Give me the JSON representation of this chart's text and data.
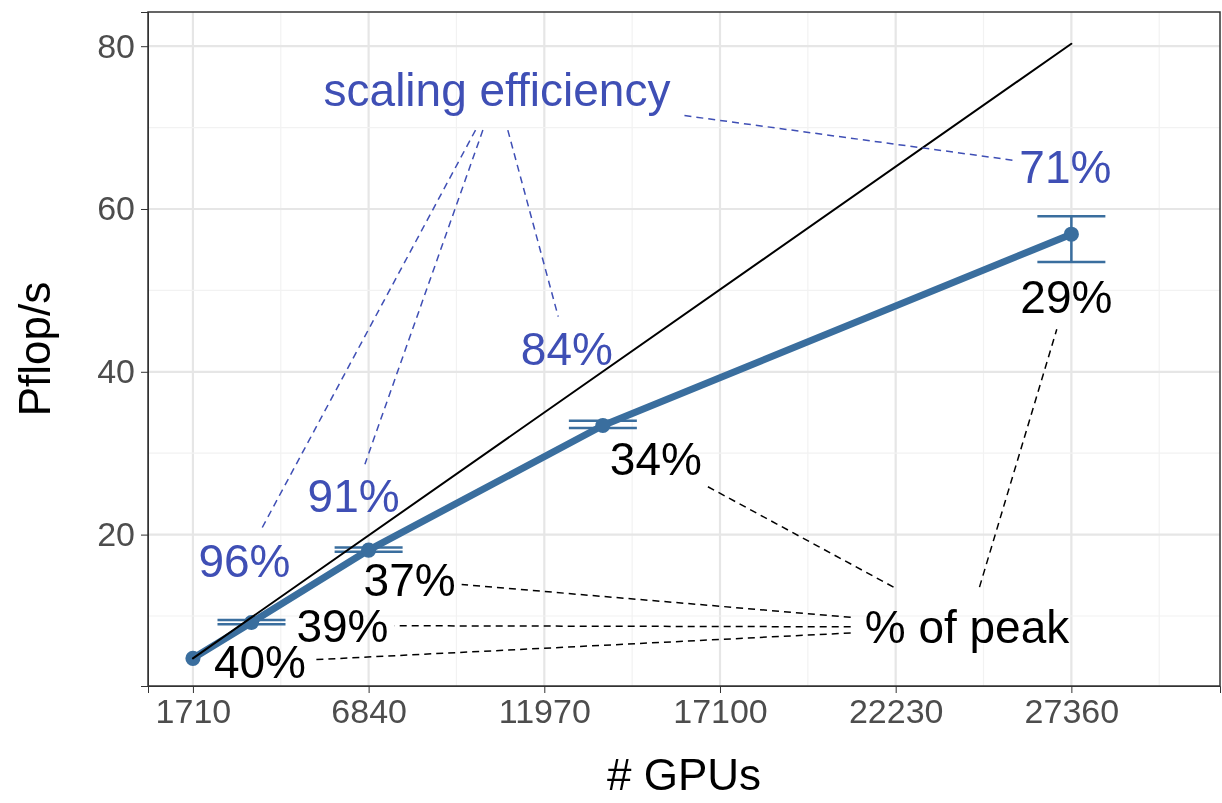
{
  "chart_data": {
    "type": "line",
    "xlabel": "# GPUs",
    "ylabel": "Pflop/s",
    "xlim": [
      398,
      31700
    ],
    "ylim": [
      1.4,
      84.2
    ],
    "xticks": [
      1710,
      6840,
      11970,
      17100,
      22230,
      27360
    ],
    "yticks": [
      20,
      40,
      60,
      80
    ],
    "grid": true,
    "marker": "circle",
    "series": [
      {
        "color": "#3a6e9e",
        "x": [
          1710,
          3420,
          6840,
          13680,
          27360
        ],
        "values": [
          4.8,
          9.2,
          18.1,
          33.4,
          56.9
        ],
        "errors": [
          null,
          [
            9.0,
            9.5
          ],
          [
            17.9,
            18.4
          ],
          [
            33.1,
            34.0
          ],
          [
            53.5,
            59.1
          ]
        ]
      },
      {
        "color": "#000000",
        "marker": "none",
        "x": [
          1710,
          27360
        ],
        "values": [
          4.8,
          80.3
        ]
      }
    ],
    "annotations": [
      "scaling efficiency",
      {
        "text": "71%",
        "x": 27360,
        "y": 56.9
      },
      {
        "text": "84%",
        "x": 13680,
        "y": 33.4
      },
      {
        "text": "91%",
        "x": 6840,
        "y": 18.1
      },
      {
        "text": "96%",
        "x": 3420,
        "y": 9.2
      },
      "% of peak",
      {
        "text": "29%",
        "x": 27360,
        "y": 56.9
      },
      {
        "text": "34%",
        "x": 13680,
        "y": 33.4
      },
      {
        "text": "37%",
        "x": 6840,
        "y": 18.1
      },
      {
        "text": "39%",
        "x": 3420,
        "y": 9.2
      },
      {
        "text": "40%",
        "x": 1710,
        "y": 4.8
      }
    ]
  }
}
